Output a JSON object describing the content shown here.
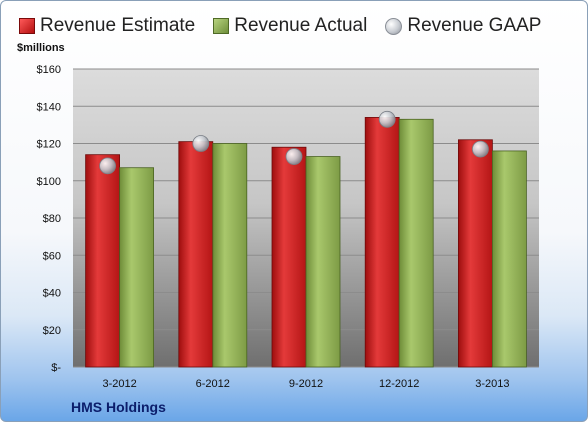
{
  "unit_label": "$millions",
  "company": "HMS Holdings",
  "colors": {
    "estimate": "#c81e1e",
    "actual": "#8aaa4e",
    "gaap": "#c8ccd2",
    "plot_top": "#d9d9d9",
    "plot_bottom": "#7a7a7a"
  },
  "chart_data": {
    "type": "bar",
    "categories": [
      "3-2012",
      "6-2012",
      "9-2012",
      "12-2012",
      "3-2013"
    ],
    "series": [
      {
        "name": "Revenue Estimate",
        "values": [
          114,
          121,
          118,
          134,
          122
        ]
      },
      {
        "name": "Revenue Actual",
        "values": [
          107,
          120,
          113,
          133,
          116
        ]
      },
      {
        "name": "Revenue GAAP",
        "values": [
          108,
          120,
          113,
          133,
          117
        ]
      }
    ],
    "ylim": [
      0,
      160
    ],
    "yticks": [
      "$-",
      "$20",
      "$40",
      "$60",
      "$80",
      "$100",
      "$120",
      "$140",
      "$160"
    ],
    "grid": true,
    "legend": "top"
  }
}
